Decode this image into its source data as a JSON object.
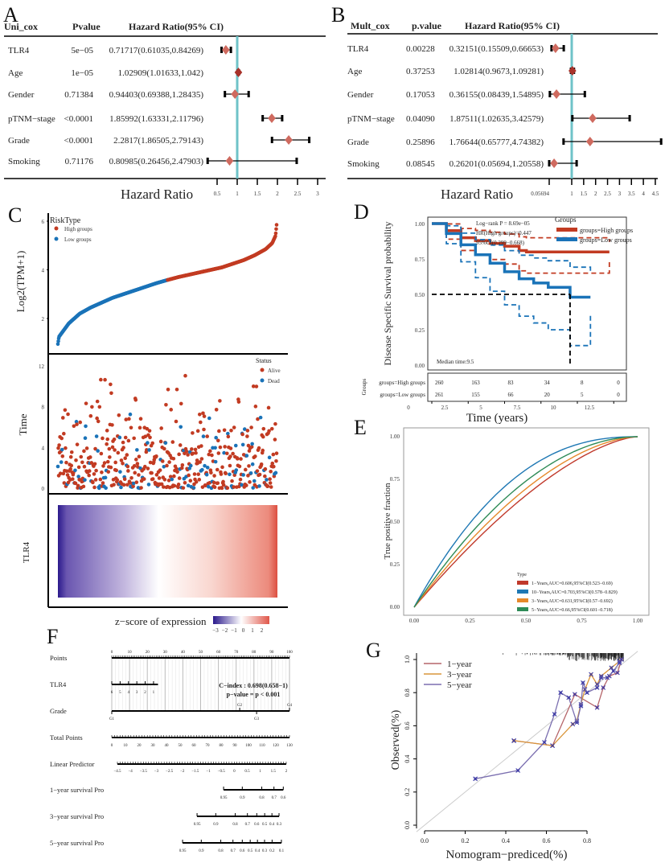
{
  "panel_labels": {
    "A": "A",
    "B": "B",
    "C": "C",
    "D": "D",
    "E": "E",
    "F": "F",
    "G": "G"
  },
  "chart_data": [
    {
      "id": "A",
      "type": "forest",
      "col_headers": [
        "Uni_cox",
        "Pvalue",
        "Hazard Ratio(95% CI)"
      ],
      "xlabel": "Hazard Ratio",
      "ref_value": 1,
      "ticks": [
        0.5,
        1,
        1.5,
        2,
        2.5,
        3
      ],
      "tick_labels": [
        "0.5",
        "1",
        "1.5",
        "2",
        "2.5",
        "3"
      ],
      "rows": [
        {
          "name": "TLR4",
          "p": "5e−05",
          "hr_text": "0.71717(0.61035,0.84269)",
          "hr": 0.71717,
          "lo": 0.61035,
          "hi": 0.84269
        },
        {
          "name": "Age",
          "p": "1e−05",
          "hr_text": "1.02909(1.01633,1.042)",
          "hr": 1.02909,
          "lo": 1.01633,
          "hi": 1.042
        },
        {
          "name": "Gender",
          "p": "0.71384",
          "hr_text": "0.94403(0.69388,1.28435)",
          "hr": 0.94403,
          "lo": 0.69388,
          "hi": 1.28435
        },
        {
          "name": "pTNM−stage",
          "p": "<0.0001",
          "hr_text": "1.85992(1.63331,2.11796)",
          "hr": 1.85992,
          "lo": 1.63331,
          "hi": 2.11796
        },
        {
          "name": "Grade",
          "p": "<0.0001",
          "hr_text": "2.2817(1.86505,2.79143)",
          "hr": 2.2817,
          "lo": 1.86505,
          "hi": 2.79143
        },
        {
          "name": "Smoking",
          "p": "0.71176",
          "hr_text": "0.80985(0.26456,2.47903)",
          "hr": 0.80985,
          "lo": 0.26456,
          "hi": 2.47903
        }
      ]
    },
    {
      "id": "B",
      "type": "forest",
      "col_headers": [
        "Mult_cox",
        "p.value",
        "Hazard Ratio(95% CI)"
      ],
      "xlabel": "Hazard Ratio",
      "ref_value": 1,
      "ticks": [
        0.05694,
        1,
        1.5,
        2,
        2.5,
        3,
        3.5,
        4,
        4.5
      ],
      "tick_labels": [
        "0.05694",
        "1",
        "1.5",
        "2",
        "2.5",
        "3",
        "3.5",
        "4",
        "4.5"
      ],
      "rows": [
        {
          "name": "TLR4",
          "p": "0.00228",
          "hr_text": "0.32151(0.15509,0.66653)",
          "hr": 0.32151,
          "lo": 0.15509,
          "hi": 0.66653
        },
        {
          "name": "Age",
          "p": "0.37253",
          "hr_text": "1.02814(0.9673,1.09281)",
          "hr": 1.02814,
          "lo": 0.9673,
          "hi": 1.09281
        },
        {
          "name": "Gender",
          "p": "0.17053",
          "hr_text": "0.36155(0.08439,1.54895)",
          "hr": 0.36155,
          "lo": 0.08439,
          "hi": 1.54895
        },
        {
          "name": "pTNM−stage",
          "p": "0.04090",
          "hr_text": "1.87511(1.02635,3.42579)",
          "hr": 1.87511,
          "lo": 1.02635,
          "hi": 3.42579
        },
        {
          "name": "Grade",
          "p": "0.25896",
          "hr_text": "1.76644(0.65777,4.74382)",
          "hr": 1.76644,
          "lo": 0.65777,
          "hi": 4.74382
        },
        {
          "name": "Smoking",
          "p": "0.08545",
          "hr_text": "0.26201(0.05694,1.20558)",
          "hr": 0.26201,
          "lo": 0.05694,
          "hi": 1.20558
        }
      ]
    },
    {
      "id": "C",
      "type": "scatter",
      "expression": {
        "ylabel": "Log2(TPM+1)",
        "yticks": [
          "2",
          "4",
          "6"
        ],
        "legend_title": "RiskType",
        "legend": [
          "High groups",
          "Low groups"
        ],
        "n_low": 261,
        "n_high": 260,
        "rank_fraction": [
          0,
          0.005,
          0.05,
          0.1,
          0.15,
          0.2,
          0.25,
          0.3,
          0.35,
          0.4,
          0.45,
          0.5,
          0.55,
          0.6,
          0.65,
          0.7,
          0.75,
          0.8,
          0.85,
          0.9,
          0.95,
          0.98,
          0.995,
          1
        ],
        "values": [
          0.95,
          1.25,
          1.8,
          2.2,
          2.45,
          2.65,
          2.85,
          3.0,
          3.15,
          3.3,
          3.45,
          3.58,
          3.7,
          3.8,
          3.9,
          4.0,
          4.1,
          4.25,
          4.4,
          4.6,
          4.85,
          5.1,
          5.4,
          5.85
        ]
      },
      "survival_time": {
        "ylabel": "Time",
        "yticks": [
          "0",
          "4",
          "8",
          "12"
        ],
        "ylim": [
          0,
          12.5
        ],
        "legend_title": "Status",
        "legend": [
          "Alive",
          "Dead"
        ]
      },
      "heatmap": {
        "row_label": "TLR4",
        "colorbar_title": "z−score of expression",
        "colorbar_ticks": [
          "−3",
          "−2",
          "−1",
          "0",
          "1",
          "2"
        ],
        "low_color": "#2b1a8c",
        "mid_color": "#ffffff",
        "high_color": "#e0574a"
      }
    },
    {
      "id": "D",
      "type": "line",
      "ylabel": "Disease Specific Survival probability",
      "xlabel": "Time (years)",
      "yticks": [
        "1.00",
        "0.75",
        "0.50",
        "0.25",
        "0.00"
      ],
      "xticks": [
        "0",
        "2.5",
        "5",
        "7.5",
        "10",
        "12.5"
      ],
      "annotations": [
        "Log−rank P = 8.69e−05",
        "HR(High groups)=0.447",
        "95%CI(0.299−0.668)"
      ],
      "median_label": "Median time:9.5",
      "median_time": 9.5,
      "legend_title": "Groups",
      "series": [
        {
          "name": "groups=High groups",
          "color": "#c23b22",
          "x": [
            0,
            1,
            2,
            3,
            4,
            5,
            6,
            6.5,
            12.2
          ],
          "y": [
            1,
            0.95,
            0.9,
            0.88,
            0.86,
            0.84,
            0.81,
            0.8,
            0.8
          ],
          "ci_upper_end": 0.87,
          "ci_lower_end": 0.73
        },
        {
          "name": "groups=Low groups",
          "color": "#1a73b8",
          "x": [
            0,
            1,
            2,
            3,
            4,
            5,
            6,
            7,
            8,
            9.5,
            9.5,
            10.9
          ],
          "y": [
            1,
            0.93,
            0.85,
            0.78,
            0.72,
            0.66,
            0.61,
            0.58,
            0.55,
            0.55,
            0.48,
            0.48
          ],
          "ci_upper_end": 0.66,
          "ci_lower_end": 0.35
        }
      ],
      "risk_table": {
        "title": "Groups",
        "rows": [
          {
            "label": "groups=High groups",
            "values": [
              "260",
              "163",
              "83",
              "34",
              "8",
              "0"
            ]
          },
          {
            "label": "groups=Low groups",
            "values": [
              "261",
              "155",
              "66",
              "20",
              "5",
              "0"
            ]
          }
        ]
      }
    },
    {
      "id": "E",
      "type": "line",
      "ylabel": "True positive fraction",
      "yticks": [
        "1.00",
        "0.75",
        "0.50",
        "0.25",
        "0.00"
      ],
      "xticks": [
        "0.00",
        "0.25",
        "0.50",
        "0.75",
        "1.00"
      ],
      "legend_title": "Type",
      "series": [
        {
          "name": "1−Years,AUC=0.606,95%CI(0.523−0.69)",
          "auc": 0.606,
          "color": "#c0392b"
        },
        {
          "name": "10−Years,AUC=0.703,95%CI(0.578−0.829)",
          "auc": 0.703,
          "color": "#1f78b4"
        },
        {
          "name": "3−Years,AUC=0.631,95%CI(0.57−0.692)",
          "auc": 0.631,
          "color": "#e6892b"
        },
        {
          "name": "5−Years,AUC=0.66,95%CI(0.601−0.718)",
          "auc": 0.66,
          "color": "#2e8b57"
        }
      ]
    },
    {
      "id": "F",
      "type": "nomogram",
      "rows": [
        {
          "label": "Points",
          "ticks": [
            "0",
            "10",
            "20",
            "30",
            "40",
            "50",
            "60",
            "70",
            "80",
            "90",
            "100"
          ]
        },
        {
          "label": "TLR4",
          "ticks": [
            "6",
            "5",
            "4",
            "3",
            "2",
            "1"
          ]
        },
        {
          "label": "Grade",
          "ticks": [
            "G1",
            "G2",
            "G3",
            "G4"
          ],
          "points": [
            0,
            72,
            81.5,
            100
          ]
        },
        {
          "label": "Total Points",
          "ticks": [
            "0",
            "10",
            "20",
            "30",
            "40",
            "50",
            "60",
            "70",
            "80",
            "90",
            "100",
            "110",
            "120",
            "130"
          ]
        },
        {
          "label": "Linear Predictor",
          "ticks": [
            "−4.5",
            "−4",
            "−3.5",
            "−3",
            "−2.5",
            "−2",
            "−1.5",
            "−1",
            "−0.5",
            "0",
            "0.5",
            "1",
            "1.5",
            "2"
          ]
        },
        {
          "label": "1−year survival Pro",
          "ticks": [
            "0.95",
            "0.9",
            "0.8",
            "0.7",
            "0.6"
          ]
        },
        {
          "label": "3−year survival Pro",
          "ticks": [
            "0.95",
            "0.9",
            "0.8",
            "0.7",
            "0.6",
            "0.5",
            "0.4",
            "0.3"
          ]
        },
        {
          "label": "5−year survival Pro",
          "ticks": [
            "0.95",
            "0.9",
            "0.8",
            "0.7",
            "0.6",
            "0.5",
            "0.4",
            "0.3",
            "0.2",
            "0.1"
          ]
        }
      ],
      "c_index": "C−index : 0.698(0.658−1)",
      "p_value": "p−value = p < 0.001"
    },
    {
      "id": "G",
      "type": "line",
      "xlabel": "Nomogram−prediced(%)",
      "ylabel": "Observed(%)",
      "xticks": [
        "0.0",
        "0.2",
        "0.4",
        "0.6",
        "0.8"
      ],
      "yticks": [
        "0.0",
        "0.2",
        "0.4",
        "0.6",
        "0.8",
        "1.0"
      ],
      "series": [
        {
          "name": "1−year",
          "color": "#b5656a",
          "x": [
            0.44,
            0.63,
            0.74,
            0.85,
            0.88,
            0.91,
            0.95,
            0.97
          ],
          "y": [
            0.51,
            0.48,
            0.79,
            0.71,
            0.83,
            0.9,
            0.92,
            1.0
          ]
        },
        {
          "name": "3−year",
          "color": "#d9953a",
          "x": [
            0.44,
            0.63,
            0.73,
            0.75,
            0.77,
            0.79,
            0.82,
            0.85,
            0.87,
            0.92,
            0.96
          ],
          "y": [
            0.51,
            0.48,
            0.61,
            0.63,
            0.73,
            0.82,
            0.91,
            0.85,
            0.9,
            0.95,
            0.99
          ]
        },
        {
          "name": "5−year",
          "color": "#7b6fb0",
          "x": [
            0.25,
            0.46,
            0.59,
            0.64,
            0.67,
            0.71,
            0.75,
            0.77,
            0.78,
            0.8,
            0.85,
            0.87,
            0.9,
            0.93,
            0.96
          ],
          "y": [
            0.28,
            0.33,
            0.5,
            0.67,
            0.8,
            0.77,
            0.62,
            0.72,
            0.86,
            0.8,
            0.83,
            0.89,
            0.89,
            0.93,
            0.98
          ]
        }
      ]
    }
  ]
}
